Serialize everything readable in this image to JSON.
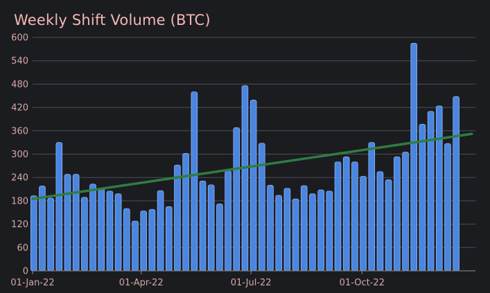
{
  "colors": {
    "background": "#1b1c20",
    "title": "#f2b8b4",
    "tick_label": "#d6a9a5",
    "grid": "#4d4f54",
    "axis": "#8e9096",
    "bar_fill": "#4a86e0",
    "bar_stroke": "#8fb3f0",
    "trend": "#2e7d43"
  },
  "chart_data": {
    "type": "bar",
    "title": "Weekly Shift Volume (BTC)",
    "xlabel": "",
    "ylabel": "",
    "ylim": [
      0,
      600
    ],
    "yticks": [
      0,
      60,
      120,
      180,
      240,
      300,
      360,
      420,
      480,
      540,
      600
    ],
    "grid": true,
    "legend": "none",
    "x_tick_labels": [
      {
        "label": "01-Jan-22",
        "date": "2022-01-01"
      },
      {
        "label": "01-Apr-22",
        "date": "2022-04-01"
      },
      {
        "label": "01-Jul-22",
        "date": "2022-07-01"
      },
      {
        "label": "01-Oct-22",
        "date": "2022-10-01"
      }
    ],
    "series": [
      {
        "type": "bar",
        "dates": [
          "2022-01-02",
          "2022-01-09",
          "2022-01-16",
          "2022-01-23",
          "2022-01-30",
          "2022-02-06",
          "2022-02-13",
          "2022-02-20",
          "2022-02-27",
          "2022-03-06",
          "2022-03-13",
          "2022-03-20",
          "2022-03-27",
          "2022-04-03",
          "2022-04-10",
          "2022-04-17",
          "2022-04-24",
          "2022-05-01",
          "2022-05-08",
          "2022-05-15",
          "2022-05-22",
          "2022-05-29",
          "2022-06-05",
          "2022-06-12",
          "2022-06-19",
          "2022-06-26",
          "2022-07-03",
          "2022-07-10",
          "2022-07-17",
          "2022-07-24",
          "2022-07-31",
          "2022-08-07",
          "2022-08-14",
          "2022-08-21",
          "2022-08-28",
          "2022-09-04",
          "2022-09-11",
          "2022-09-18",
          "2022-09-25",
          "2022-10-02",
          "2022-10-09",
          "2022-10-16",
          "2022-10-23",
          "2022-10-30",
          "2022-11-06",
          "2022-11-13",
          "2022-11-20",
          "2022-11-27",
          "2022-12-04",
          "2022-12-11",
          "2022-12-18",
          "2022-12-25"
        ],
        "values": [
          193,
          218,
          187,
          330,
          248,
          248,
          189,
          223,
          213,
          205,
          198,
          160,
          128,
          154,
          158,
          206,
          165,
          272,
          302,
          460,
          231,
          221,
          172,
          257,
          368,
          476,
          439,
          328,
          220,
          194,
          212,
          185,
          219,
          198,
          208,
          205,
          280,
          293,
          280,
          243,
          330,
          255,
          234,
          293,
          305,
          585,
          377,
          410,
          424,
          327,
          448,
          0
        ]
      },
      {
        "type": "line",
        "name": "",
        "dates": [
          "2022-01-01",
          "2022-12-31"
        ],
        "values": [
          185,
          352
        ]
      }
    ]
  }
}
